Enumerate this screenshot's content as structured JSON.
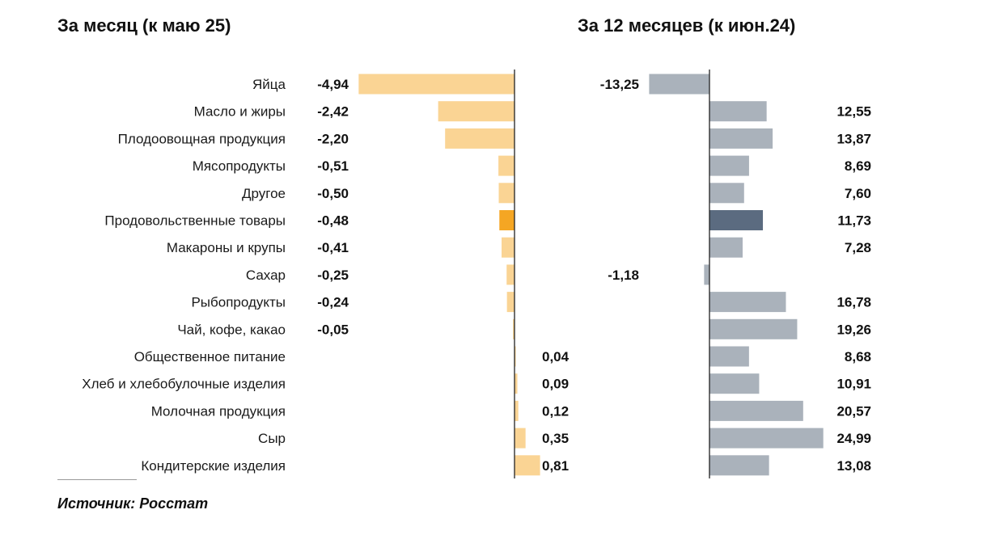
{
  "colors": {
    "month_bar": "#fad494",
    "month_highlight": "#f5a623",
    "year_bar": "#aab2bb",
    "year_highlight": "#5b6b80",
    "axis": "#222222"
  },
  "source": "Источник: Росстат",
  "chart_data": [
    {
      "type": "bar",
      "orientation": "horizontal",
      "title": "За месяц (к маю 25)",
      "categories": [
        "Яйца",
        "Масло и жиры",
        "Плодоовощная продукция",
        "Мясопродукты",
        "Другое",
        "Продовольственные товары",
        "Макароны и крупы",
        "Сахар",
        "Рыбопродукты",
        "Чай, кофе, какао",
        "Общественное питание",
        "Хлеб и хлебобулочные изделия",
        "Молочная продукция",
        "Сыр",
        "Кондитерские изделия"
      ],
      "values": [
        -4.94,
        -2.42,
        -2.2,
        -0.51,
        -0.5,
        -0.48,
        -0.41,
        -0.25,
        -0.24,
        -0.05,
        0.04,
        0.09,
        0.12,
        0.35,
        0.81
      ],
      "value_labels": [
        "-4,94",
        "-2,42",
        "-2,20",
        "-0,51",
        "-0,50",
        "-0,48",
        "-0,41",
        "-0,25",
        "-0,24",
        "-0,05",
        "0,04",
        "0,09",
        "0,12",
        "0,35",
        "0,81"
      ],
      "highlight_category": "Продовольственные товары",
      "grid": false
    },
    {
      "type": "bar",
      "orientation": "horizontal",
      "title": "За 12 месяцев (к июн.24)",
      "categories": [
        "Яйца",
        "Масло и жиры",
        "Плодоовощная продукция",
        "Мясопродукты",
        "Другое",
        "Продовольственные товары",
        "Макароны и крупы",
        "Сахар",
        "Рыбопродукты",
        "Чай, кофе, какао",
        "Общественное питание",
        "Хлеб и хлебобулочные изделия",
        "Молочная продукция",
        "Сыр",
        "Кондитерские изделия"
      ],
      "values": [
        -13.25,
        12.55,
        13.87,
        8.69,
        7.6,
        11.73,
        7.28,
        -1.18,
        16.78,
        19.26,
        8.68,
        10.91,
        20.57,
        24.99,
        13.08
      ],
      "value_labels": [
        "-13,25",
        "12,55",
        "13,87",
        "8,69",
        "7,60",
        "11,73",
        "7,28",
        "-1,18",
        "16,78",
        "19,26",
        "8,68",
        "10,91",
        "20,57",
        "24,99",
        "13,08"
      ],
      "highlight_category": "Продовольственные товары",
      "grid": false
    }
  ]
}
